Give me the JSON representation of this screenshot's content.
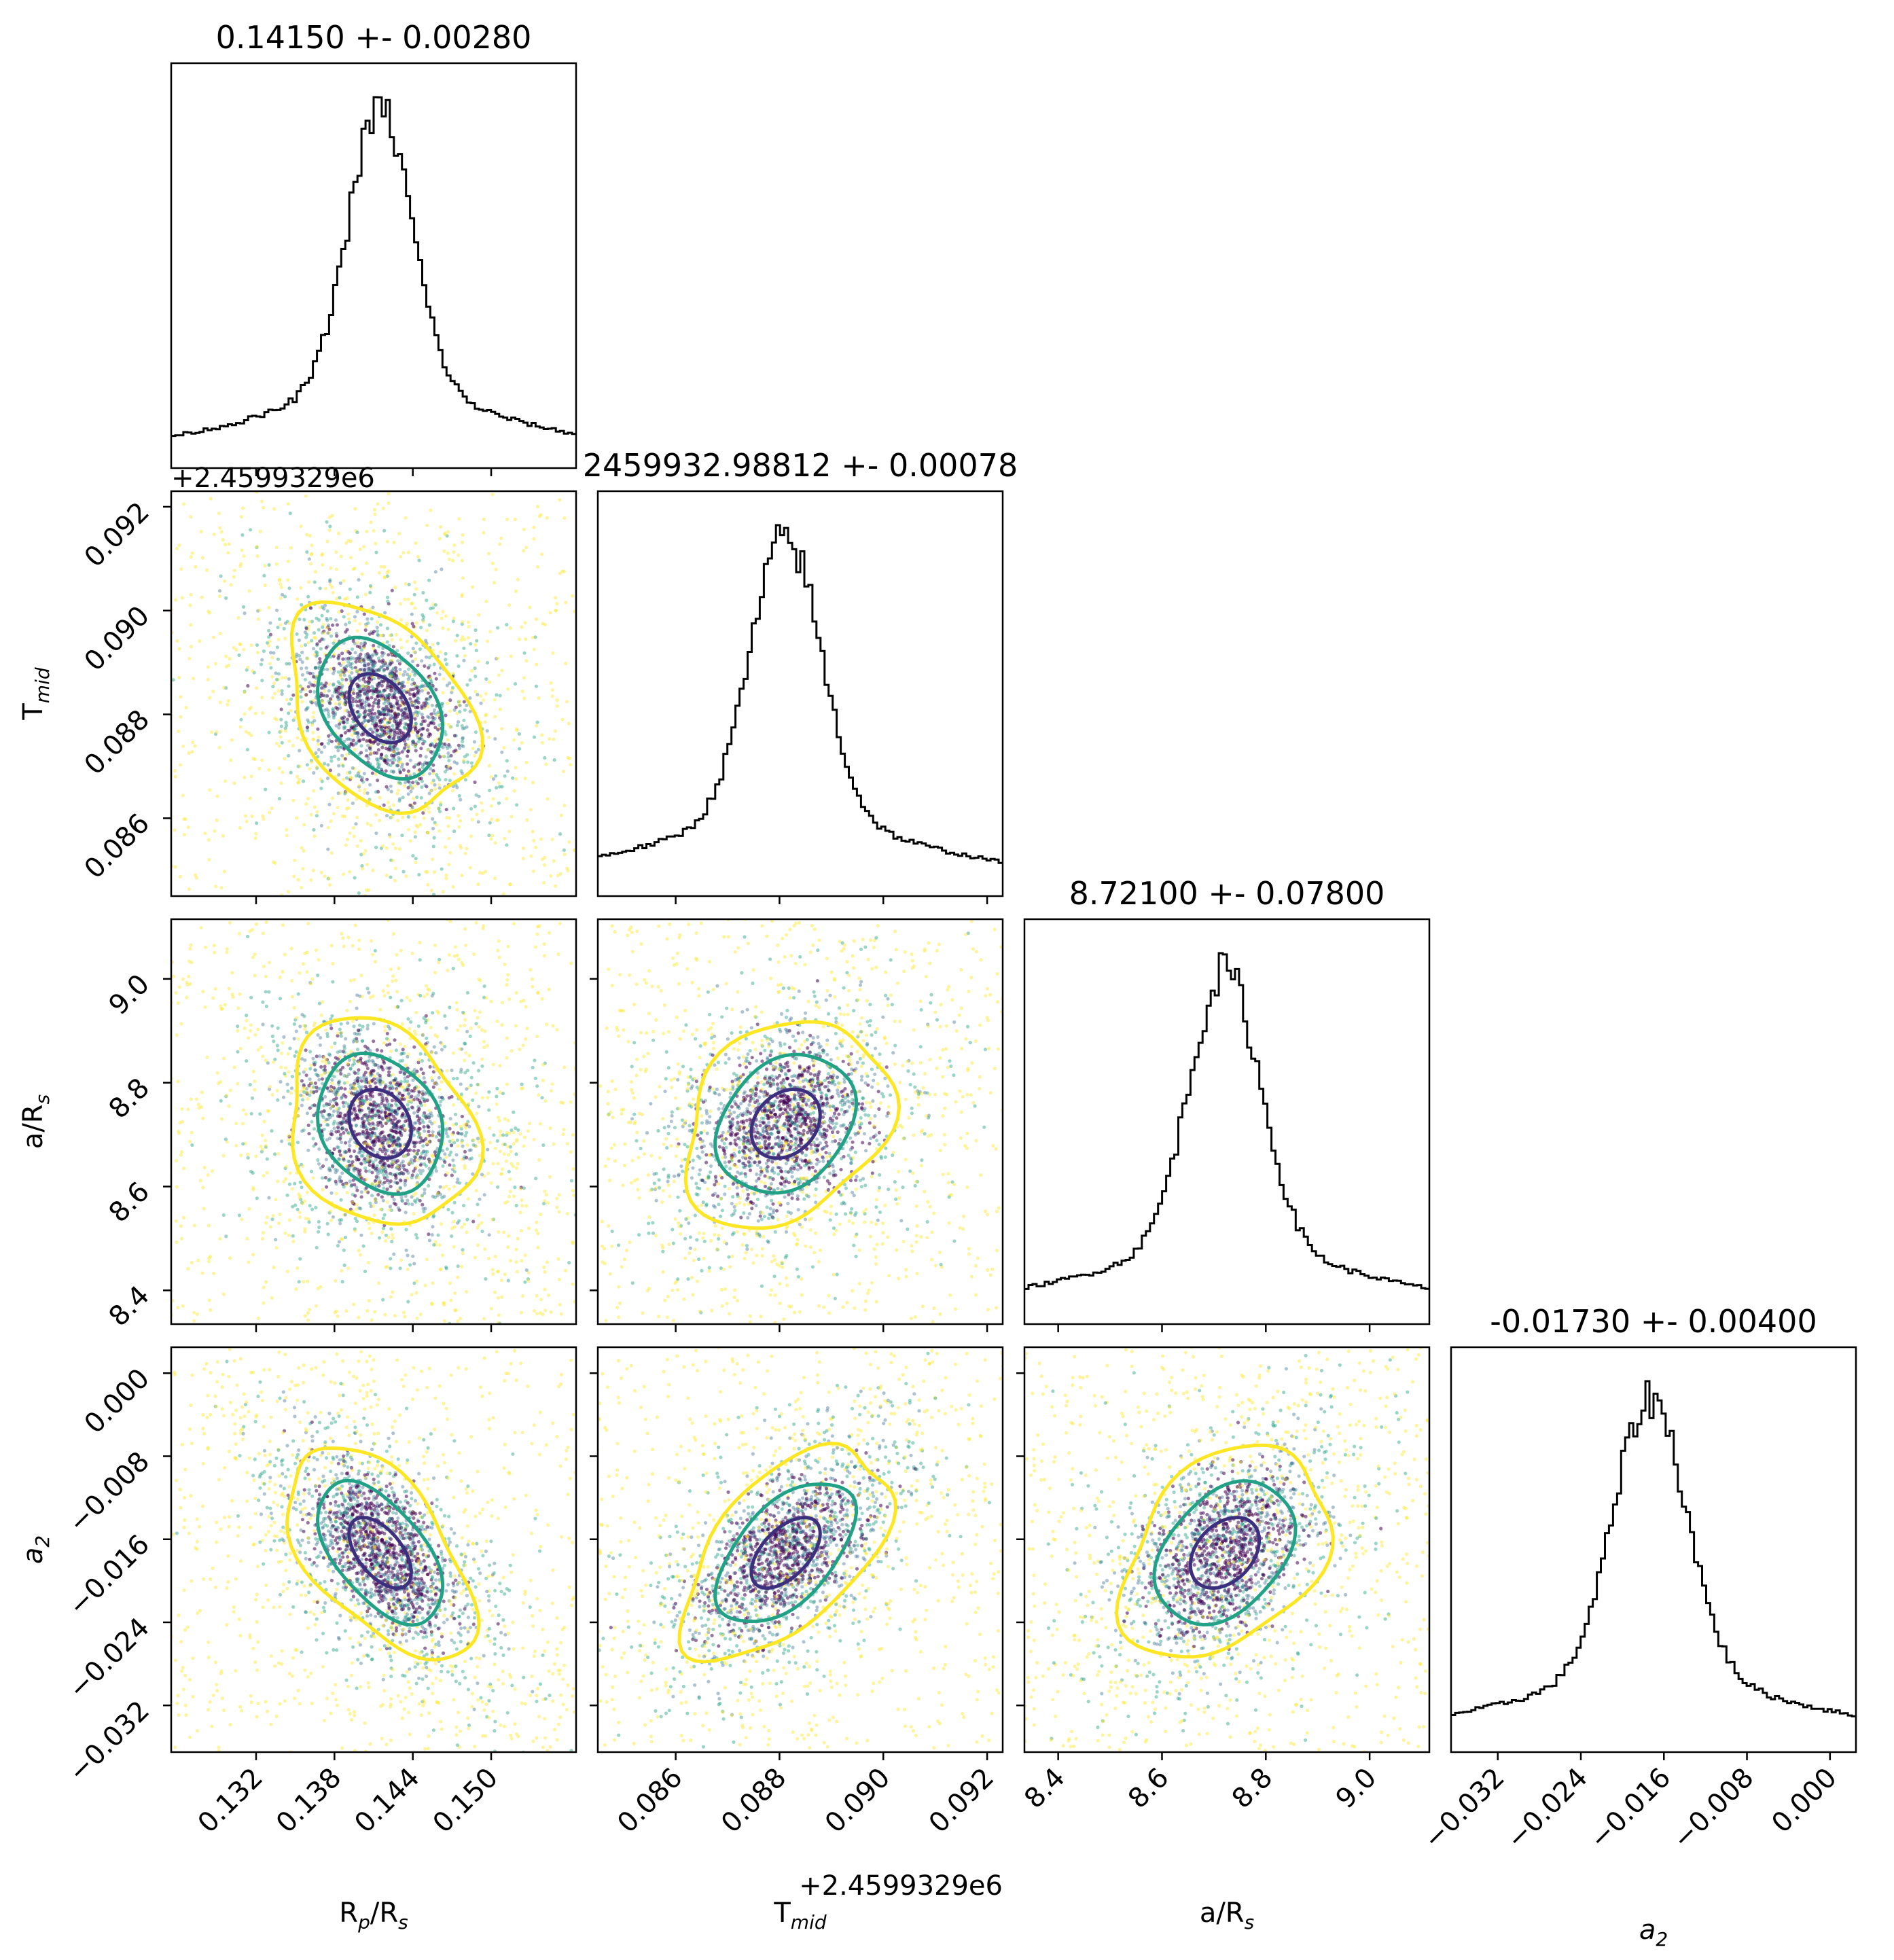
{
  "chart_data": {
    "type": "scatter",
    "subtype": "corner-plot",
    "params": [
      {
        "key": "rp",
        "label": "R",
        "sub": "p",
        "label2": "/R",
        "sub2": "s",
        "range": [
          0.1255,
          0.1565
        ],
        "center": 0.1415,
        "sigma": 0.0028,
        "ticks": [
          0.132,
          0.138,
          0.144,
          0.15
        ],
        "tick_labels": [
          "0.132",
          "0.138",
          "0.144",
          "0.150"
        ],
        "title": "0.14150 +- 0.00280"
      },
      {
        "key": "tmid",
        "label": "T",
        "sub": "mid",
        "label2": "",
        "sub2": "",
        "range": [
          0.0845,
          0.0923
        ],
        "center": 0.08812,
        "sigma": 0.00078,
        "ticks": [
          0.086,
          0.088,
          0.09,
          0.092
        ],
        "tick_labels": [
          "0.086",
          "0.088",
          "0.090",
          "0.092"
        ],
        "offset": "+2.4599329e6",
        "title": "2459932.98812 +- 0.00078"
      },
      {
        "key": "ars",
        "label": "a/R",
        "sub": "s",
        "label2": "",
        "sub2": "",
        "range": [
          8.335,
          9.115
        ],
        "center": 8.721,
        "sigma": 0.078,
        "ticks": [
          8.4,
          8.6,
          8.8,
          9.0
        ],
        "tick_labels": [
          "8.4",
          "8.6",
          "8.8",
          "9.0"
        ],
        "title": "8.72100 +- 0.07800"
      },
      {
        "key": "a2",
        "label": "",
        "sub": "",
        "label2": "",
        "sub2": "",
        "label_italic": "a",
        "sub_italic": "2",
        "range": [
          -0.0365,
          0.0025
        ],
        "center": -0.0173,
        "sigma": 0.004,
        "ticks": [
          -0.032,
          -0.024,
          -0.016,
          -0.008,
          0.0
        ],
        "tick_labels": [
          "−0.032",
          "−0.024",
          "−0.016",
          "−0.008",
          "0.000"
        ],
        "title": "-0.01730 +- 0.00400"
      }
    ],
    "contour_levels": [
      "1-sigma",
      "2-sigma",
      "3-sigma"
    ],
    "colors": {
      "inner": "#3b2f7e",
      "middle": "#21a185",
      "outer": "#fde725",
      "points_core": "#440154",
      "points_mid": "#31688e",
      "hist": "#000000"
    }
  }
}
